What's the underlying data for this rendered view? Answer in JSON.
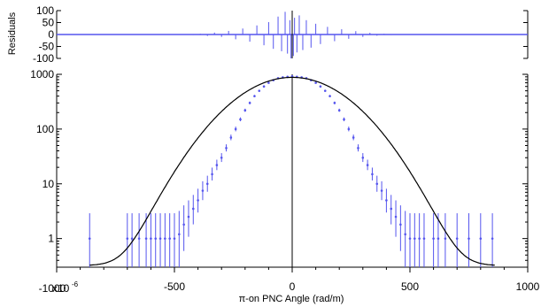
{
  "chart_data": [
    {
      "type": "scatter",
      "panel": "residuals",
      "ylabel": "Residuals",
      "ylim": [
        -100,
        100
      ],
      "yticks": [
        {
          "value": 100,
          "label": "100"
        },
        {
          "value": 50,
          "label": "50"
        },
        {
          "value": 0,
          "label": "0"
        },
        {
          "value": -50,
          "label": "-50"
        },
        {
          "value": -100,
          "label": "-100"
        }
      ],
      "xlim": [
        -1000,
        1000
      ],
      "series": [
        {
          "role": "residual-points",
          "color": "#5555ee",
          "x": [
            -450,
            -420,
            -390,
            -360,
            -330,
            -300,
            -270,
            -240,
            -210,
            -180,
            -150,
            -120,
            -100,
            -80,
            -60,
            -45,
            -30,
            -20,
            -10,
            -5,
            0,
            5,
            10,
            20,
            30,
            45,
            60,
            80,
            100,
            120,
            150,
            180,
            210,
            240,
            270,
            300,
            330,
            360,
            390,
            420,
            450
          ],
          "y": [
            0,
            -2,
            3,
            -6,
            8,
            -10,
            15,
            -20,
            25,
            -30,
            38,
            -45,
            52,
            -60,
            75,
            -70,
            95,
            -80,
            60,
            -100,
            0,
            -90,
            70,
            -75,
            80,
            -65,
            60,
            -55,
            45,
            -40,
            32,
            -28,
            22,
            -18,
            14,
            -10,
            7,
            -5,
            3,
            -2,
            0
          ]
        }
      ]
    },
    {
      "type": "scatter",
      "panel": "main",
      "xlabel": "π-on PNC Angle (rad/m)",
      "xscale_label": "x10",
      "xscale_exponent": "-6",
      "xlim": [
        -1000,
        1000
      ],
      "xticks": [
        {
          "value": -1000,
          "label": "-1000"
        },
        {
          "value": -500,
          "label": "-500"
        },
        {
          "value": 0,
          "label": "0"
        },
        {
          "value": 500,
          "label": "500"
        },
        {
          "value": 1000,
          "label": "1000"
        }
      ],
      "ylim": [
        0.3,
        1000
      ],
      "yscale": "log",
      "yticks": [
        {
          "value": 1000,
          "label": "1000"
        },
        {
          "value": 100,
          "label": "100"
        },
        {
          "value": 10,
          "label": "10"
        },
        {
          "value": 1,
          "label": "1"
        }
      ],
      "series": [
        {
          "role": "data-points",
          "color": "#5555ee",
          "x": [
            -860,
            -700,
            -680,
            -650,
            -620,
            -600,
            -580,
            -560,
            -540,
            -520,
            -500,
            -480,
            -460,
            -440,
            -420,
            -400,
            -380,
            -360,
            -340,
            -320,
            -300,
            -280,
            -260,
            -240,
            -220,
            -200,
            -180,
            -160,
            -140,
            -120,
            -100,
            -80,
            -60,
            -40,
            -20,
            0,
            20,
            40,
            60,
            80,
            100,
            120,
            140,
            160,
            180,
            200,
            220,
            240,
            260,
            280,
            300,
            320,
            340,
            360,
            380,
            400,
            420,
            440,
            460,
            480,
            500,
            520,
            540,
            560,
            600,
            620,
            650,
            700,
            750,
            800,
            850
          ],
          "y": [
            1,
            1,
            1,
            1,
            1,
            1,
            1,
            1,
            1,
            1,
            1,
            1.2,
            1.8,
            2.5,
            3.5,
            5,
            7.5,
            10,
            15,
            22,
            30,
            45,
            70,
            100,
            150,
            220,
            300,
            400,
            500,
            600,
            700,
            780,
            850,
            880,
            900,
            920,
            900,
            880,
            850,
            780,
            700,
            600,
            500,
            400,
            300,
            220,
            150,
            100,
            70,
            45,
            30,
            22,
            15,
            10,
            7.5,
            5,
            3.5,
            2.5,
            1.8,
            1.2,
            1,
            1,
            1,
            1,
            1,
            1,
            1,
            1,
            1,
            1,
            1
          ]
        },
        {
          "role": "gaussian-fit",
          "color": "#000000",
          "amplitude": 880,
          "sigma": 177,
          "baseline": 0.32
        }
      ]
    }
  ]
}
